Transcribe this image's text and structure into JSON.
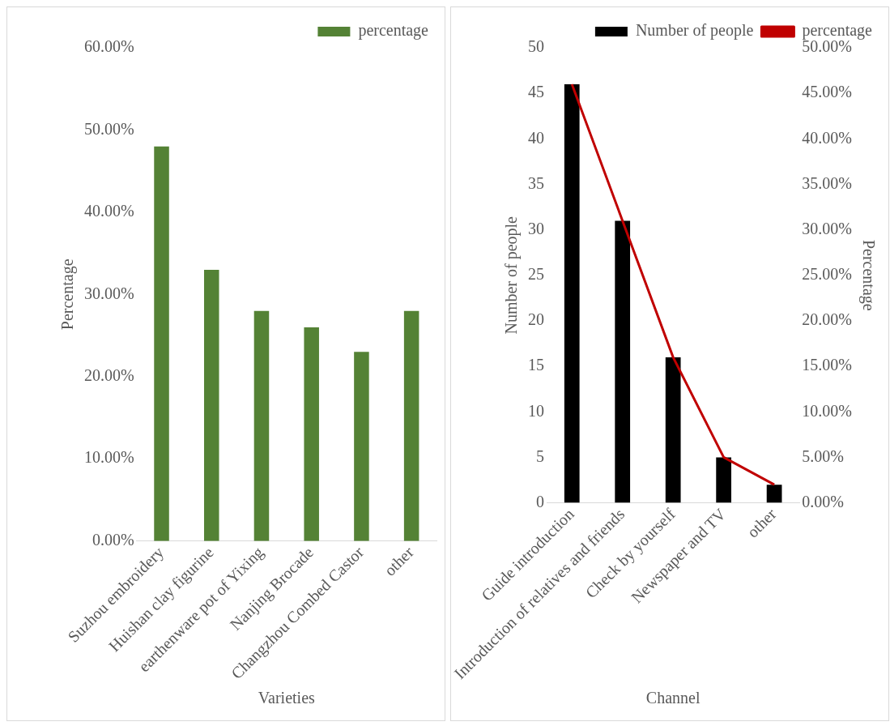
{
  "chart_data": [
    {
      "type": "bar",
      "xlabel": "Varieties",
      "ylabel": "Percentage",
      "categories": [
        "Suzhou embroidery",
        "Huishan clay figurine",
        "earthenware pot of Yixing",
        "Nanjing Brocade",
        "Changzhou Combed Castor",
        "other"
      ],
      "series": [
        {
          "name": "percentage",
          "color": "#548235",
          "values": [
            48,
            33,
            28,
            26,
            23,
            28
          ]
        }
      ],
      "ylim": [
        0,
        60
      ],
      "yticks": [
        {
          "value": 0,
          "label": "0.00%"
        },
        {
          "value": 10,
          "label": "10.00%"
        },
        {
          "value": 20,
          "label": "20.00%"
        },
        {
          "value": 30,
          "label": "30.00%"
        },
        {
          "value": 40,
          "label": "40.00%"
        },
        {
          "value": 50,
          "label": "50.00%"
        },
        {
          "value": 60,
          "label": "60.00%"
        }
      ],
      "grid": false,
      "legend": "top right"
    },
    {
      "type": "bar",
      "xlabel": "Channel",
      "ylabel": "Number of people",
      "y2label": "Percentage",
      "categories": [
        "Guide introduction",
        "Introduction of relatives and friends",
        "Check by yourself",
        "Newspaper and TV",
        "other"
      ],
      "series": [
        {
          "name": "Number of people",
          "type": "bar",
          "color": "#000000",
          "values": [
            46,
            31,
            16,
            5,
            2
          ]
        },
        {
          "name": "percentage",
          "type": "line",
          "axis": "y2",
          "color": "#c00000",
          "values": [
            46,
            31,
            16,
            5,
            2
          ],
          "marker": "none"
        }
      ],
      "ylim": [
        0,
        50
      ],
      "yticks": [
        0,
        5,
        10,
        15,
        20,
        25,
        30,
        35,
        40,
        45,
        50
      ],
      "y2lim": [
        0,
        50
      ],
      "y2ticks": [
        {
          "value": 0,
          "label": "0.00%"
        },
        {
          "value": 5,
          "label": "5.00%"
        },
        {
          "value": 10,
          "label": "10.00%"
        },
        {
          "value": 15,
          "label": "15.00%"
        },
        {
          "value": 20,
          "label": "20.00%"
        },
        {
          "value": 25,
          "label": "25.00%"
        },
        {
          "value": 30,
          "label": "30.00%"
        },
        {
          "value": 35,
          "label": "35.00%"
        },
        {
          "value": 40,
          "label": "40.00%"
        },
        {
          "value": 45,
          "label": "45.00%"
        },
        {
          "value": 50,
          "label": "50.00%"
        }
      ],
      "grid": false,
      "legend": "top right"
    }
  ]
}
